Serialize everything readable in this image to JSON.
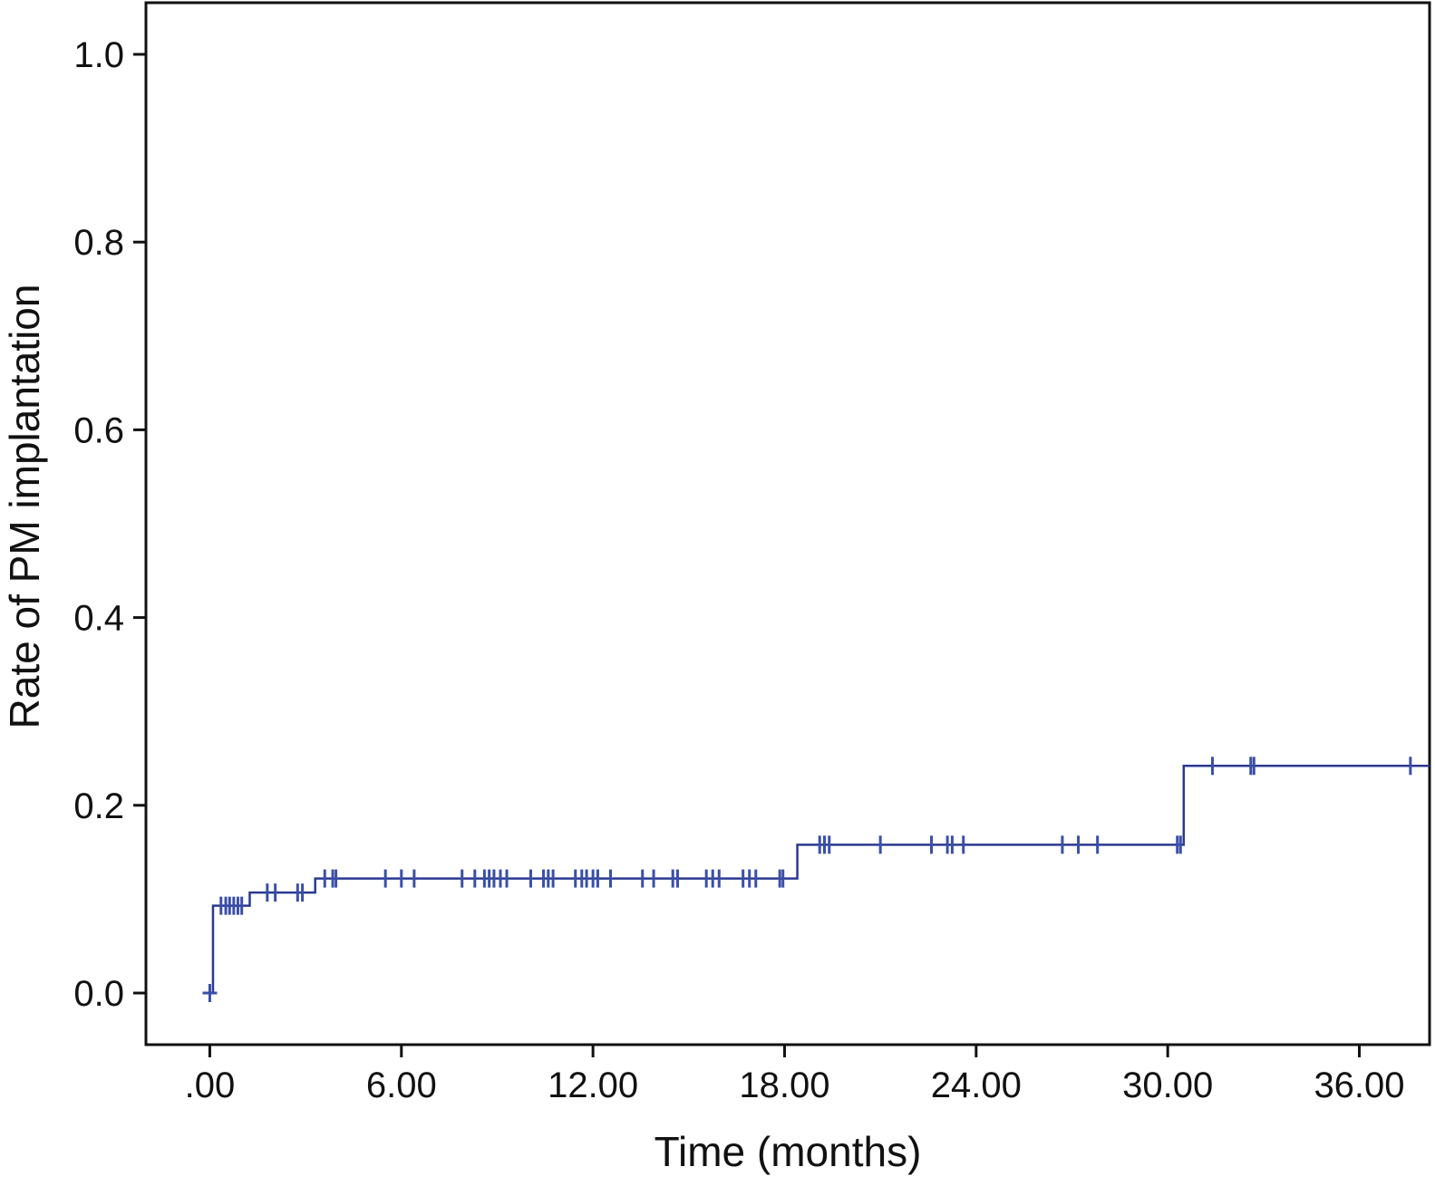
{
  "chart_data": {
    "type": "line",
    "step": true,
    "title": "",
    "xlabel": "Time (months)",
    "ylabel": "Rate of PM implantation",
    "xlim": [
      -2.0,
      38.2
    ],
    "ylim": [
      -0.055,
      1.055
    ],
    "x_ticks": [
      0,
      6,
      12,
      18,
      24,
      30,
      36
    ],
    "x_tick_labels": [
      ".00",
      "6.00",
      "12.00",
      "18.00",
      "24.00",
      "30.00",
      "36.00"
    ],
    "y_ticks": [
      0.0,
      0.2,
      0.4,
      0.6,
      0.8,
      1.0
    ],
    "y_tick_labels": [
      "0.0",
      "0.2",
      "0.4",
      "0.6",
      "0.8",
      "1.0"
    ],
    "grid": false,
    "series": [
      {
        "line_color": "#2b3990",
        "censor_color": "#3a4fa8",
        "steps": [
          {
            "x": 0.0,
            "y": 0.0
          },
          {
            "x": 0.1,
            "y": 0.093
          },
          {
            "x": 1.25,
            "y": 0.107
          },
          {
            "x": 3.3,
            "y": 0.122
          },
          {
            "x": 18.4,
            "y": 0.158
          },
          {
            "x": 30.5,
            "y": 0.242
          }
        ],
        "x_end": 38.2,
        "censored": [
          {
            "x": 0.0,
            "y": 0.0
          },
          {
            "x": 0.35,
            "y": 0.093
          },
          {
            "x": 0.5,
            "y": 0.093
          },
          {
            "x": 0.62,
            "y": 0.093
          },
          {
            "x": 0.75,
            "y": 0.093
          },
          {
            "x": 0.88,
            "y": 0.093
          },
          {
            "x": 1.0,
            "y": 0.093
          },
          {
            "x": 1.8,
            "y": 0.107
          },
          {
            "x": 2.05,
            "y": 0.107
          },
          {
            "x": 2.75,
            "y": 0.107
          },
          {
            "x": 2.9,
            "y": 0.107
          },
          {
            "x": 3.6,
            "y": 0.122
          },
          {
            "x": 3.85,
            "y": 0.122
          },
          {
            "x": 3.95,
            "y": 0.122
          },
          {
            "x": 5.5,
            "y": 0.122
          },
          {
            "x": 6.0,
            "y": 0.122
          },
          {
            "x": 6.4,
            "y": 0.122
          },
          {
            "x": 7.9,
            "y": 0.122
          },
          {
            "x": 8.3,
            "y": 0.122
          },
          {
            "x": 8.6,
            "y": 0.122
          },
          {
            "x": 8.75,
            "y": 0.122
          },
          {
            "x": 8.9,
            "y": 0.122
          },
          {
            "x": 9.1,
            "y": 0.122
          },
          {
            "x": 9.3,
            "y": 0.122
          },
          {
            "x": 10.05,
            "y": 0.122
          },
          {
            "x": 10.45,
            "y": 0.122
          },
          {
            "x": 10.6,
            "y": 0.122
          },
          {
            "x": 10.75,
            "y": 0.122
          },
          {
            "x": 11.45,
            "y": 0.122
          },
          {
            "x": 11.65,
            "y": 0.122
          },
          {
            "x": 11.8,
            "y": 0.122
          },
          {
            "x": 12.0,
            "y": 0.122
          },
          {
            "x": 12.15,
            "y": 0.122
          },
          {
            "x": 12.55,
            "y": 0.122
          },
          {
            "x": 13.55,
            "y": 0.122
          },
          {
            "x": 13.9,
            "y": 0.122
          },
          {
            "x": 14.5,
            "y": 0.122
          },
          {
            "x": 14.65,
            "y": 0.122
          },
          {
            "x": 15.55,
            "y": 0.122
          },
          {
            "x": 15.75,
            "y": 0.122
          },
          {
            "x": 15.95,
            "y": 0.122
          },
          {
            "x": 16.7,
            "y": 0.122
          },
          {
            "x": 16.9,
            "y": 0.122
          },
          {
            "x": 17.1,
            "y": 0.122
          },
          {
            "x": 17.85,
            "y": 0.122
          },
          {
            "x": 17.95,
            "y": 0.122
          },
          {
            "x": 19.1,
            "y": 0.158
          },
          {
            "x": 19.25,
            "y": 0.158
          },
          {
            "x": 19.4,
            "y": 0.158
          },
          {
            "x": 21.0,
            "y": 0.158
          },
          {
            "x": 22.6,
            "y": 0.158
          },
          {
            "x": 23.1,
            "y": 0.158
          },
          {
            "x": 23.25,
            "y": 0.158
          },
          {
            "x": 23.6,
            "y": 0.158
          },
          {
            "x": 26.7,
            "y": 0.158
          },
          {
            "x": 27.2,
            "y": 0.158
          },
          {
            "x": 27.8,
            "y": 0.158
          },
          {
            "x": 30.3,
            "y": 0.158
          },
          {
            "x": 30.4,
            "y": 0.158
          },
          {
            "x": 31.4,
            "y": 0.242
          },
          {
            "x": 32.6,
            "y": 0.242
          },
          {
            "x": 32.7,
            "y": 0.242
          },
          {
            "x": 37.6,
            "y": 0.242
          }
        ]
      }
    ]
  }
}
